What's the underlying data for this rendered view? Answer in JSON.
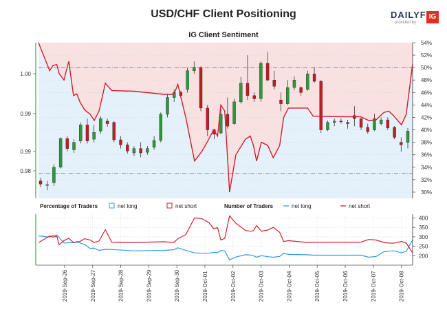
{
  "chart_data": [
    {
      "type": "line",
      "panel": "top",
      "title": "USD/CHF Client Positioning",
      "subtitle": "IG Client Sentiment",
      "left_axis": {
        "ticks": [
          "0.98",
          "0.99",
          "0.99",
          "1.00"
        ],
        "range": [
          0.978,
          1.008
        ]
      },
      "right_axis": {
        "ticks": [
          "30%",
          "32%",
          "34%",
          "36%",
          "38%",
          "40%",
          "42%",
          "44%",
          "46%",
          "48%",
          "50%",
          "52%",
          "54%"
        ],
        "range": [
          29,
          54
        ]
      },
      "reference_lines": [
        {
          "value": 50,
          "axis": "right"
        },
        {
          "value": 33,
          "axis": "right"
        }
      ],
      "x": [
        "2019-Sep-26",
        "2019-Sep-27",
        "2019-Sep-28",
        "2019-Sep-29",
        "2019-Sep-30",
        "2019-Oct-01",
        "2019-Oct-02",
        "2019-Oct-03",
        "2019-Oct-04",
        "2019-Oct-05",
        "2019-Oct-06",
        "2019-Oct-07",
        "2019-Oct-08"
      ],
      "series": [
        {
          "name": "net long",
          "color": "#3399e6",
          "values_pct": [
            [
              0,
              54
            ],
            [
              1.4,
              49.5
            ],
            [
              1.8,
              50.3
            ],
            [
              2.3,
              50.5
            ],
            [
              2.6,
              49
            ],
            [
              3.2,
              48
            ],
            [
              3.8,
              51
            ],
            [
              4.4,
              45.5
            ],
            [
              4.8,
              45.8
            ],
            [
              5.2,
              44.5
            ],
            [
              5.8,
              43.2
            ],
            [
              6.5,
              42.5
            ],
            [
              7.0,
              41.5
            ],
            [
              7.6,
              43
            ],
            [
              8.4,
              47.5
            ],
            [
              9.2,
              46.3
            ],
            [
              12,
              46.2
            ],
            [
              15.8,
              45.7
            ],
            [
              17,
              45.7
            ],
            [
              17.5,
              47.3
            ],
            [
              18.5,
              42
            ],
            [
              19.6,
              35
            ],
            [
              20.5,
              36.5
            ],
            [
              21.4,
              38.5
            ],
            [
              22.0,
              40
            ],
            [
              22.5,
              39
            ],
            [
              22.9,
              44
            ],
            [
              23.4,
              43
            ],
            [
              24,
              30
            ],
            [
              24.8,
              36
            ],
            [
              26,
              38.5
            ],
            [
              26.6,
              39
            ],
            [
              27.0,
              37.5
            ],
            [
              27.4,
              35
            ],
            [
              28.0,
              38
            ],
            [
              28.8,
              37.5
            ],
            [
              29.5,
              35.5
            ],
            [
              30.3,
              37.5
            ],
            [
              30.8,
              42
            ],
            [
              31.4,
              43.5
            ],
            [
              33.8,
              43.5
            ],
            [
              34.5,
              42.2
            ],
            [
              38.5,
              42.1
            ],
            [
              40.5,
              42.1
            ],
            [
              41.5,
              41.5
            ],
            [
              42.4,
              41.6
            ],
            [
              43.4,
              42.8
            ],
            [
              44.0,
              43
            ],
            [
              44.6,
              42.3
            ],
            [
              45.6,
              40.8
            ],
            [
              46.2,
              42.5
            ],
            [
              47.0,
              50.6
            ]
          ]
        },
        {
          "name": "net short",
          "color": "#d11d2a",
          "values_pct": []
        }
      ],
      "candles": [
        {
          "o": 31.8,
          "h": 32.3,
          "l": 30.8,
          "c": 31.3
        },
        {
          "o": 31.2,
          "h": 31.8,
          "l": 30.3,
          "c": 31.1
        },
        {
          "o": 31.5,
          "h": 34.5,
          "l": 31.0,
          "c": 34.0
        },
        {
          "o": 34.0,
          "h": 38.8,
          "l": 33.8,
          "c": 38.6
        },
        {
          "o": 38.6,
          "h": 39.0,
          "l": 36.5,
          "c": 37.0
        },
        {
          "o": 36.8,
          "h": 38.5,
          "l": 36.3,
          "c": 38.0
        },
        {
          "o": 38.2,
          "h": 41.2,
          "l": 37.8,
          "c": 40.8
        },
        {
          "o": 40.8,
          "h": 41.8,
          "l": 37.8,
          "c": 38.2
        },
        {
          "o": 38.5,
          "h": 40.8,
          "l": 38.0,
          "c": 39.6
        },
        {
          "o": 39.8,
          "h": 42.2,
          "l": 39.4,
          "c": 41.8
        },
        {
          "o": 41.4,
          "h": 41.8,
          "l": 40.5,
          "c": 41.0
        },
        {
          "o": 41.2,
          "h": 41.4,
          "l": 38.0,
          "c": 38.4
        },
        {
          "o": 38.4,
          "h": 39.0,
          "l": 37.0,
          "c": 37.6
        },
        {
          "o": 37.6,
          "h": 38.0,
          "l": 36.2,
          "c": 36.6
        },
        {
          "o": 36.3,
          "h": 37.4,
          "l": 35.8,
          "c": 37.0
        },
        {
          "o": 37.0,
          "h": 38.0,
          "l": 35.6,
          "c": 36.3
        },
        {
          "o": 36.4,
          "h": 37.4,
          "l": 36.0,
          "c": 37.0
        },
        {
          "o": 37.2,
          "h": 39.0,
          "l": 36.8,
          "c": 38.3
        },
        {
          "o": 38.3,
          "h": 42.8,
          "l": 38.0,
          "c": 42.5
        },
        {
          "o": 42.5,
          "h": 45.8,
          "l": 42.0,
          "c": 45.2
        },
        {
          "o": 45.2,
          "h": 46.5,
          "l": 44.5,
          "c": 46.0
        },
        {
          "o": 46.0,
          "h": 46.3,
          "l": 45.0,
          "c": 45.5
        },
        {
          "o": 46.5,
          "h": 50.0,
          "l": 46.0,
          "c": 49.5
        },
        {
          "o": 49.5,
          "h": 51.0,
          "l": 49.0,
          "c": 50.0
        },
        {
          "o": 50.0,
          "h": 50.2,
          "l": 43.0,
          "c": 43.5
        },
        {
          "o": 43.5,
          "h": 44.0,
          "l": 39.0,
          "c": 40.0
        },
        {
          "o": 40.0,
          "h": 40.2,
          "l": 38.5,
          "c": 39.3
        },
        {
          "o": 39.5,
          "h": 43.5,
          "l": 39.3,
          "c": 42.5
        },
        {
          "o": 42.5,
          "h": 45.2,
          "l": 40.2,
          "c": 40.6
        },
        {
          "o": 41.0,
          "h": 45.0,
          "l": 40.8,
          "c": 44.5
        },
        {
          "o": 44.5,
          "h": 48.5,
          "l": 44.2,
          "c": 47.5
        },
        {
          "o": 47.5,
          "h": 52.0,
          "l": 44.8,
          "c": 45.5
        },
        {
          "o": 45.5,
          "h": 46.0,
          "l": 44.5,
          "c": 45.0
        },
        {
          "o": 45.0,
          "h": 51.0,
          "l": 44.5,
          "c": 50.7
        },
        {
          "o": 50.7,
          "h": 52.5,
          "l": 47.8,
          "c": 48.0
        },
        {
          "o": 48.0,
          "h": 49.5,
          "l": 46.5,
          "c": 47.0
        },
        {
          "o": 44.8,
          "h": 46.0,
          "l": 43.0,
          "c": 44.2
        },
        {
          "o": 44.2,
          "h": 48.0,
          "l": 44.0,
          "c": 46.8
        },
        {
          "o": 46.8,
          "h": 48.6,
          "l": 46.4,
          "c": 48.0
        },
        {
          "o": 46.8,
          "h": 47.0,
          "l": 45.5,
          "c": 46.0
        },
        {
          "o": 46.5,
          "h": 49.5,
          "l": 46.3,
          "c": 49.0
        },
        {
          "o": 49.0,
          "h": 50.0,
          "l": 47.6,
          "c": 47.8
        },
        {
          "o": 47.8,
          "h": 48.0,
          "l": 39.5,
          "c": 40.0
        },
        {
          "o": 40.0,
          "h": 41.5,
          "l": 39.8,
          "c": 41.2
        },
        {
          "o": 41.2,
          "h": 41.8,
          "l": 40.6,
          "c": 41.4
        },
        {
          "o": 41.4,
          "h": 41.8,
          "l": 41.0,
          "c": 41.3
        },
        {
          "o": 41.2,
          "h": 41.6,
          "l": 40.2,
          "c": 41.0
        },
        {
          "o": 42.3,
          "h": 43.8,
          "l": 40.6,
          "c": 41.8
        },
        {
          "o": 41.8,
          "h": 41.9,
          "l": 40.0,
          "c": 40.4
        },
        {
          "o": 40.4,
          "h": 41.0,
          "l": 39.4,
          "c": 39.7
        },
        {
          "o": 40.0,
          "h": 42.6,
          "l": 39.8,
          "c": 41.8
        },
        {
          "o": 41.0,
          "h": 42.0,
          "l": 40.7,
          "c": 41.6
        },
        {
          "o": 41.6,
          "h": 42.0,
          "l": 40.0,
          "c": 40.3
        },
        {
          "o": 40.4,
          "h": 40.6,
          "l": 38.5,
          "c": 38.8
        },
        {
          "o": 38.0,
          "h": 38.8,
          "l": 36.5,
          "c": 37.6
        },
        {
          "o": 38.0,
          "h": 40.3,
          "l": 37.0,
          "c": 39.8
        }
      ]
    },
    {
      "type": "line",
      "panel": "bottom",
      "ylim": [
        150,
        420
      ],
      "y_ticks": [
        200,
        250,
        300,
        350,
        400
      ],
      "x": [
        "2019-Sep-26",
        "2019-Sep-27",
        "2019-Sep-28",
        "2019-Sep-29",
        "2019-Sep-30",
        "2019-Oct-01",
        "2019-Oct-02",
        "2019-Oct-03",
        "2019-Oct-04",
        "2019-Oct-05",
        "2019-Oct-06",
        "2019-Oct-07",
        "2019-Oct-08"
      ],
      "series": [
        {
          "name": "net long",
          "color": "#3399e6",
          "values": [
            [
              0,
              305
            ],
            [
              1.4,
              299
            ],
            [
              1.8,
              307
            ],
            [
              2.3,
              310
            ],
            [
              2.6,
              296
            ],
            [
              3.2,
              267
            ],
            [
              3.8,
              270
            ],
            [
              4.4,
              269
            ],
            [
              4.8,
              272
            ],
            [
              5.2,
              268
            ],
            [
              5.8,
              259
            ],
            [
              6.5,
              238
            ],
            [
              7.0,
              240
            ],
            [
              7.6,
              228
            ],
            [
              8.4,
              234
            ],
            [
              9.2,
              233
            ],
            [
              12,
              226
            ],
            [
              15.8,
              228
            ],
            [
              17,
              232
            ],
            [
              17.5,
              242
            ],
            [
              18.5,
              228
            ],
            [
              19.6,
              215
            ],
            [
              20.5,
              213
            ],
            [
              21.4,
              213
            ],
            [
              22.0,
              218
            ],
            [
              22.5,
              216
            ],
            [
              22.9,
              228
            ],
            [
              23.4,
              225
            ],
            [
              24,
              178
            ],
            [
              24.8,
              193
            ],
            [
              26,
              205
            ],
            [
              26.6,
              204
            ],
            [
              27.0,
              200
            ],
            [
              27.4,
              192
            ],
            [
              28.0,
              200
            ],
            [
              28.8,
              195
            ],
            [
              29.5,
              192
            ],
            [
              30.3,
              196
            ],
            [
              30.8,
              214
            ],
            [
              31.4,
              207
            ],
            [
              33.8,
              205
            ],
            [
              34.5,
              203
            ],
            [
              38.5,
              203
            ],
            [
              40.5,
              203
            ],
            [
              41.5,
              192
            ],
            [
              42.4,
              196
            ],
            [
              43.4,
              221
            ],
            [
              44.0,
              224
            ],
            [
              44.6,
              226
            ],
            [
              45.6,
              216
            ],
            [
              46.2,
              223
            ],
            [
              47.0,
              284
            ]
          ]
        },
        {
          "name": "net short",
          "color": "#d11d2a",
          "values": [
            [
              0,
              269
            ],
            [
              1.4,
              305
            ],
            [
              1.8,
              299
            ],
            [
              2.3,
              303
            ],
            [
              2.6,
              258
            ],
            [
              3.2,
              280
            ],
            [
              3.8,
              292
            ],
            [
              4.4,
              270
            ],
            [
              4.8,
              274
            ],
            [
              5.2,
              275
            ],
            [
              5.8,
              290
            ],
            [
              6.5,
              283
            ],
            [
              7.0,
              270
            ],
            [
              7.6,
              278
            ],
            [
              8.4,
              338
            ],
            [
              9.2,
              272
            ],
            [
              12,
              270
            ],
            [
              15.8,
              274
            ],
            [
              17,
              270
            ],
            [
              17.5,
              290
            ],
            [
              18.5,
              312
            ],
            [
              19.6,
              400
            ],
            [
              20.5,
              397
            ],
            [
              21.4,
              376
            ],
            [
              22.0,
              344
            ],
            [
              22.5,
              348
            ],
            [
              22.9,
              283
            ],
            [
              23.4,
              292
            ],
            [
              24,
              411
            ],
            [
              24.8,
              372
            ],
            [
              26,
              334
            ],
            [
              26.6,
              330
            ],
            [
              27.0,
              332
            ],
            [
              27.4,
              360
            ],
            [
              28.0,
              330
            ],
            [
              28.8,
              336
            ],
            [
              29.5,
              350
            ],
            [
              30.3,
              324
            ],
            [
              30.8,
              275
            ],
            [
              31.4,
              280
            ],
            [
              33.8,
              270
            ],
            [
              34.5,
              272
            ],
            [
              38.5,
              272
            ],
            [
              40.5,
              272
            ],
            [
              41.5,
              286
            ],
            [
              42.4,
              283
            ],
            [
              43.4,
              270
            ],
            [
              44.0,
              267
            ],
            [
              44.6,
              266
            ],
            [
              45.6,
              276
            ],
            [
              46.2,
              267
            ],
            [
              47.0,
              215
            ]
          ]
        }
      ]
    }
  ],
  "legend": {
    "pct_label": "Percentage of Traders",
    "num_label": "Number of Traders",
    "net_long": "net long",
    "net_short": "net short"
  },
  "colors": {
    "long": "#3399e6",
    "short": "#d11d2a",
    "long_fill": "#e5f1fa",
    "short_fill": "#f9e1e2",
    "up_candle": "#2c9a3a",
    "down_candle": "#c21d24",
    "axis": "#2e8b3a"
  },
  "brand": {
    "word": "DAILYFX",
    "sub": "provided by",
    "mark": "IG"
  }
}
